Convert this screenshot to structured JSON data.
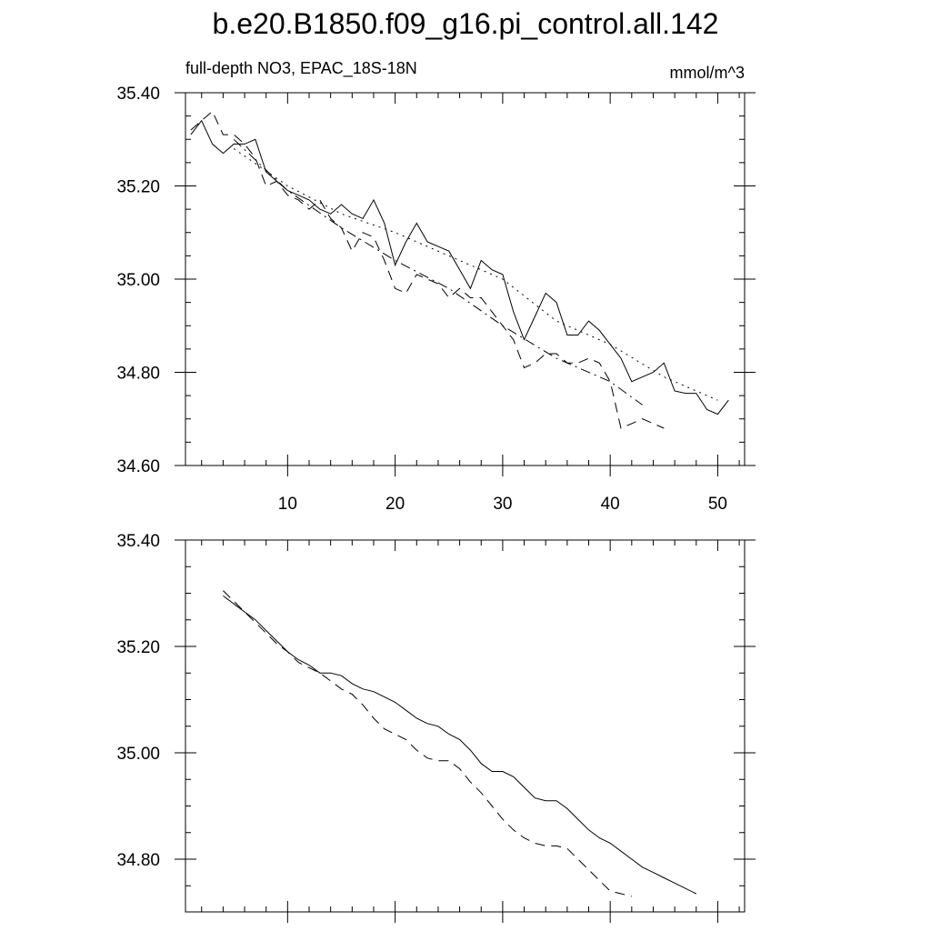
{
  "title": "b.e20.B1850.f09_g16.pi_control.all.142",
  "subtitle_left": "full-depth NO3, EPAC_18S-18N",
  "subtitle_right": "mmol/m^3",
  "chart_data": [
    {
      "type": "line",
      "xlim": [
        0.5,
        52.5
      ],
      "ylim": [
        34.6,
        35.4
      ],
      "x_ticks": [
        10,
        20,
        30,
        40,
        50
      ],
      "x_tick_labels": [
        "10",
        "20",
        "30",
        "40",
        "50"
      ],
      "y_ticks": [
        34.6,
        34.8,
        35.0,
        35.2,
        35.4
      ],
      "y_tick_labels": [
        "34.60",
        "34.80",
        "35.00",
        "35.20",
        "35.40"
      ],
      "grid": false,
      "series": [
        {
          "style": "solid",
          "x": [
            1,
            2,
            3,
            4,
            5,
            6,
            7,
            8,
            9,
            10,
            11,
            12,
            13,
            14,
            15,
            16,
            17,
            18,
            19,
            20,
            21,
            22,
            23,
            24,
            25,
            26,
            27,
            28,
            29,
            30,
            31,
            32,
            33,
            34,
            35,
            36,
            37,
            38,
            39,
            40,
            41,
            42,
            43,
            44,
            45,
            46,
            47,
            48,
            49,
            50,
            51
          ],
          "y": [
            35.31,
            35.34,
            35.29,
            35.27,
            35.29,
            35.29,
            35.3,
            35.23,
            35.21,
            35.19,
            35.18,
            35.17,
            35.15,
            35.14,
            35.16,
            35.14,
            35.13,
            35.17,
            35.12,
            35.03,
            35.08,
            35.12,
            35.08,
            35.07,
            35.06,
            35.02,
            34.98,
            35.04,
            35.02,
            35.01,
            34.93,
            34.87,
            34.92,
            34.97,
            34.95,
            34.88,
            34.88,
            34.91,
            34.89,
            34.86,
            34.83,
            34.78,
            34.79,
            34.8,
            34.82,
            34.76,
            34.755,
            34.755,
            34.72,
            34.71,
            34.74
          ]
        },
        {
          "style": "dashed",
          "x": [
            1,
            2,
            3,
            4,
            5,
            6,
            7,
            8,
            9,
            10,
            11,
            12,
            13,
            14,
            15,
            16,
            17,
            18,
            19,
            20,
            21,
            22,
            23,
            24,
            25,
            26,
            27,
            28,
            29,
            30,
            31,
            32,
            33,
            34,
            35,
            36,
            37,
            38,
            39,
            40,
            41,
            42,
            43,
            44,
            45
          ],
          "y": [
            35.32,
            35.34,
            35.36,
            35.31,
            35.31,
            35.29,
            35.26,
            35.2,
            35.21,
            35.18,
            35.17,
            35.15,
            35.17,
            35.13,
            35.11,
            35.06,
            35.1,
            35.09,
            35.04,
            34.98,
            34.97,
            35.01,
            35.0,
            34.99,
            34.96,
            34.98,
            34.96,
            34.96,
            34.93,
            34.9,
            34.87,
            34.81,
            34.82,
            34.84,
            34.84,
            34.82,
            34.82,
            34.83,
            34.82,
            34.78,
            34.68,
            34.69,
            34.7,
            34.69,
            34.68
          ]
        },
        {
          "style": "dotted",
          "x": [
            5,
            10,
            15,
            20,
            25,
            30,
            35,
            40,
            45,
            50
          ],
          "y": [
            35.28,
            35.2,
            35.14,
            35.1,
            35.05,
            35.0,
            34.91,
            34.86,
            34.79,
            34.74
          ]
        },
        {
          "style": "dash-dot",
          "x": [
            5,
            10,
            15,
            20,
            25,
            30,
            35,
            40,
            43
          ],
          "y": [
            35.3,
            35.19,
            35.11,
            35.04,
            34.98,
            34.9,
            34.83,
            34.78,
            34.73
          ]
        }
      ]
    },
    {
      "type": "line",
      "xlim": [
        0.5,
        52.5
      ],
      "ylim": [
        34.7,
        35.4
      ],
      "x_ticks": [
        10,
        20,
        30,
        40,
        50
      ],
      "y_ticks": [
        34.8,
        35.0,
        35.2,
        35.4
      ],
      "y_tick_labels": [
        "34.80",
        "35.00",
        "35.20",
        "35.40"
      ],
      "grid": false,
      "series": [
        {
          "style": "solid",
          "x": [
            4,
            5,
            6,
            7,
            8,
            9,
            10,
            11,
            12,
            13,
            14,
            15,
            16,
            17,
            18,
            19,
            20,
            21,
            22,
            23,
            24,
            25,
            26,
            27,
            28,
            29,
            30,
            31,
            32,
            33,
            34,
            35,
            36,
            37,
            38,
            39,
            40,
            41,
            42,
            43,
            44,
            45,
            46,
            47,
            48
          ],
          "y": [
            35.295,
            35.28,
            35.265,
            35.25,
            35.23,
            35.21,
            35.19,
            35.175,
            35.165,
            35.15,
            35.15,
            35.145,
            35.13,
            35.12,
            35.115,
            35.105,
            35.095,
            35.08,
            35.065,
            35.055,
            35.05,
            35.035,
            35.025,
            35.005,
            34.98,
            34.965,
            34.965,
            34.955,
            34.935,
            34.915,
            34.91,
            34.91,
            34.895,
            34.875,
            34.855,
            34.84,
            34.83,
            34.815,
            34.8,
            34.785,
            34.775,
            34.765,
            34.755,
            34.745,
            34.735
          ]
        },
        {
          "style": "dashed",
          "x": [
            4,
            5,
            6,
            7,
            8,
            9,
            10,
            11,
            12,
            13,
            14,
            15,
            16,
            17,
            18,
            19,
            20,
            21,
            22,
            23,
            24,
            25,
            26,
            27,
            28,
            29,
            30,
            31,
            32,
            33,
            34,
            35,
            36,
            37,
            38,
            39,
            40,
            41,
            42
          ],
          "y": [
            35.305,
            35.285,
            35.265,
            35.245,
            35.225,
            35.205,
            35.19,
            35.17,
            35.16,
            35.15,
            35.135,
            35.12,
            35.11,
            35.09,
            35.065,
            35.045,
            35.035,
            35.025,
            35.005,
            34.99,
            34.985,
            34.985,
            34.97,
            34.945,
            34.925,
            34.9,
            34.875,
            34.855,
            34.84,
            34.83,
            34.825,
            34.825,
            34.82,
            34.8,
            34.78,
            34.76,
            34.74,
            34.735,
            34.73
          ]
        }
      ]
    }
  ]
}
